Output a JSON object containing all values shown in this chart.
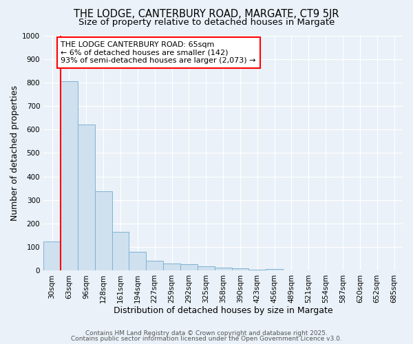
{
  "title": "THE LODGE, CANTERBURY ROAD, MARGATE, CT9 5JR",
  "subtitle": "Size of property relative to detached houses in Margate",
  "xlabel": "Distribution of detached houses by size in Margate",
  "ylabel": "Number of detached properties",
  "bar_color": "#cfe0ef",
  "bar_edge_color": "#7fb3d3",
  "background_color": "#eaf1f8",
  "grid_color": "#ffffff",
  "categories": [
    "30sqm",
    "63sqm",
    "96sqm",
    "128sqm",
    "161sqm",
    "194sqm",
    "227sqm",
    "259sqm",
    "292sqm",
    "325sqm",
    "358sqm",
    "390sqm",
    "423sqm",
    "456sqm",
    "489sqm",
    "521sqm",
    "554sqm",
    "587sqm",
    "620sqm",
    "652sqm",
    "685sqm"
  ],
  "values": [
    125,
    805,
    620,
    338,
    165,
    80,
    42,
    30,
    28,
    18,
    12,
    10,
    5,
    8,
    1,
    0,
    0,
    0,
    0,
    0,
    0
  ],
  "red_line_x": 0.5,
  "annotation_text": "THE LODGE CANTERBURY ROAD: 65sqm\n← 6% of detached houses are smaller (142)\n93% of semi-detached houses are larger (2,073) →",
  "ylim": [
    0,
    1000
  ],
  "yticks": [
    0,
    100,
    200,
    300,
    400,
    500,
    600,
    700,
    800,
    900,
    1000
  ],
  "footer_line1": "Contains HM Land Registry data © Crown copyright and database right 2025.",
  "footer_line2": "Contains public sector information licensed under the Open Government Licence v3.0.",
  "title_fontsize": 10.5,
  "subtitle_fontsize": 9.5,
  "axis_label_fontsize": 9,
  "tick_fontsize": 7.5,
  "annotation_fontsize": 8,
  "footer_fontsize": 6.5
}
